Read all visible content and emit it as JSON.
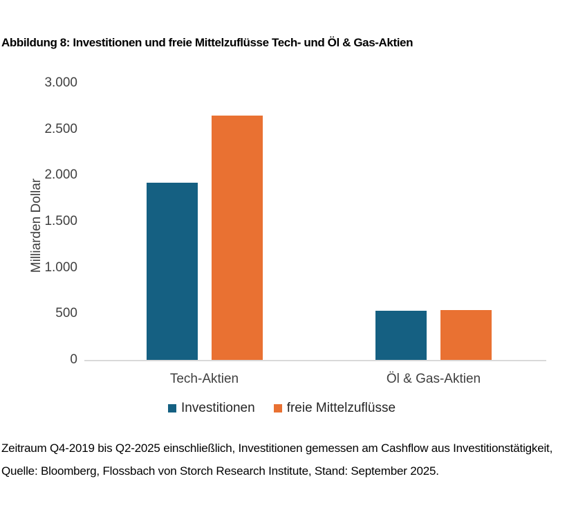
{
  "title": "Abbildung 8: Investitionen und freie Mittelzuflüsse Tech- und Öl & Gas-Aktien",
  "chart_data": {
    "type": "bar",
    "categories": [
      "Tech-Aktien",
      "Öl & Gas-Aktien"
    ],
    "series": [
      {
        "name": "Investitionen",
        "color": "#156082",
        "values": [
          1920,
          530
        ]
      },
      {
        "name": "freie Mittelzuflüsse",
        "color": "#E97132",
        "values": [
          2650,
          540
        ]
      }
    ],
    "xlabel": "",
    "ylabel": "Milliarden Dollar",
    "ylim": [
      0,
      3000
    ],
    "ytick_interval": 500,
    "yticks": [
      "3.000",
      "2.500",
      "2.000",
      "1.500",
      "1.000",
      "500",
      "0"
    ],
    "grid": false,
    "legend_position": "bottom"
  },
  "footnote": {
    "line1": "Zeitraum Q4-2019 bis Q2-2025 einschließlich, Investitionen gemessen am Cashflow aus Investitionstätigkeit,",
    "line2": "Quelle: Bloomberg, Flossbach von Storch Research Institute, Stand: September 2025."
  },
  "colors": {
    "axis_line": "#d9d9d9",
    "tick_label": "#404040",
    "title_text": "#000000"
  }
}
